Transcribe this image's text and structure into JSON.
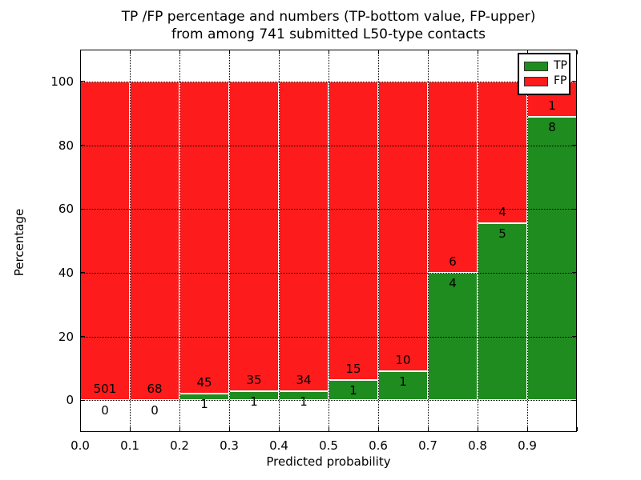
{
  "chart_data": {
    "type": "bar",
    "stacked": true,
    "title_line1": "TP /FP percentage and numbers (TP-bottom value, FP-upper)",
    "title_line2": "from among 741 submitted L50-type contacts",
    "xlabel": "Predicted probability",
    "ylabel": "Percentage",
    "xlim": [
      0.0,
      1.0
    ],
    "ylim": [
      -10,
      110
    ],
    "grid": true,
    "x_ticks": [
      {
        "value": 0.0,
        "label": "0.0"
      },
      {
        "value": 0.1,
        "label": "0.1"
      },
      {
        "value": 0.2,
        "label": "0.2"
      },
      {
        "value": 0.3,
        "label": "0.3"
      },
      {
        "value": 0.4,
        "label": "0.4"
      },
      {
        "value": 0.5,
        "label": "0.5"
      },
      {
        "value": 0.6,
        "label": "0.6"
      },
      {
        "value": 0.7,
        "label": "0.7"
      },
      {
        "value": 0.8,
        "label": "0.8"
      },
      {
        "value": 0.9,
        "label": "0.9"
      },
      {
        "value": 1.0,
        "label": ""
      }
    ],
    "y_ticks": [
      {
        "value": 0,
        "label": "0"
      },
      {
        "value": 20,
        "label": "20"
      },
      {
        "value": 40,
        "label": "40"
      },
      {
        "value": 60,
        "label": "60"
      },
      {
        "value": 80,
        "label": "80"
      },
      {
        "value": 100,
        "label": "100"
      }
    ],
    "legend": {
      "position": "upper right",
      "entries": [
        {
          "label": "TP",
          "color": "#1f8c1f"
        },
        {
          "label": "FP",
          "color": "#fe1b1b"
        }
      ]
    },
    "series_note": "Each bin stacks TP (bottom, green) and FP (top, red) to 100%",
    "bins": [
      {
        "range": [
          0.0,
          0.1
        ],
        "tp": 0,
        "fp": 501,
        "tp_pct": 0.0
      },
      {
        "range": [
          0.1,
          0.2
        ],
        "tp": 0,
        "fp": 68,
        "tp_pct": 0.0
      },
      {
        "range": [
          0.2,
          0.3
        ],
        "tp": 1,
        "fp": 45,
        "tp_pct": 2.17
      },
      {
        "range": [
          0.3,
          0.4
        ],
        "tp": 1,
        "fp": 35,
        "tp_pct": 2.78
      },
      {
        "range": [
          0.4,
          0.5
        ],
        "tp": 1,
        "fp": 34,
        "tp_pct": 2.86
      },
      {
        "range": [
          0.5,
          0.6
        ],
        "tp": 1,
        "fp": 15,
        "tp_pct": 6.25
      },
      {
        "range": [
          0.6,
          0.7
        ],
        "tp": 1,
        "fp": 10,
        "tp_pct": 9.09
      },
      {
        "range": [
          0.7,
          0.8
        ],
        "tp": 4,
        "fp": 6,
        "tp_pct": 40.0
      },
      {
        "range": [
          0.8,
          0.9
        ],
        "tp": 5,
        "fp": 4,
        "tp_pct": 55.56
      },
      {
        "range": [
          0.9,
          1.0
        ],
        "tp": 8,
        "fp": 1,
        "tp_pct": 88.89
      }
    ],
    "colors": {
      "tp": "#1f8c1f",
      "fp": "#fe1b1b",
      "grid": "#000000",
      "text": "#000000",
      "background": "#ffffff"
    }
  }
}
